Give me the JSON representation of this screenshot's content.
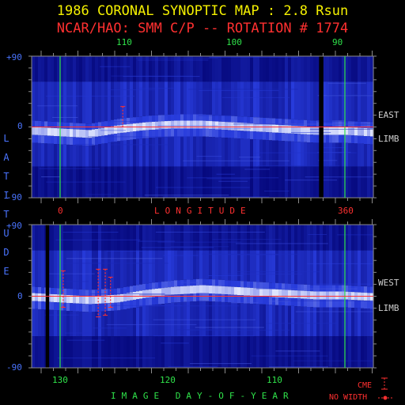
{
  "header": {
    "title": "1986 CORONAL SYNOPTIC MAP : 2.8 Rsun",
    "subtitle": "NCAR/HAO: SMM C/P -- ROTATION # 1774"
  },
  "colors": {
    "background": "#000000",
    "title": "#f4f000",
    "subtitle": "#ff3030",
    "latitude_axis": "#4a74ff",
    "green_markers": "#2fe34a",
    "equator_line": "#ff3030",
    "map_low": "#00007a",
    "map_high": "#e8ecff"
  },
  "top_axis": {
    "ticks": [
      "110",
      "100",
      "90"
    ]
  },
  "middle_axis": {
    "left": "0",
    "label": "LONGITUDE",
    "right": "360"
  },
  "bottom_axis": {
    "ticks": [
      "130",
      "120",
      "110"
    ],
    "label": "IMAGE DAY-OF-YEAR"
  },
  "y_axis": {
    "label": "LATITUDE",
    "top": "+90",
    "mid": "0",
    "bottom": "-90"
  },
  "side_labels": {
    "top_panel": [
      "EAST",
      "LIMB"
    ],
    "bottom_panel": [
      "WEST",
      "LIMB"
    ]
  },
  "legend": {
    "cme": "CME",
    "no_width": "NO WIDTH"
  },
  "chart_data": [
    {
      "type": "heatmap",
      "panel": "EAST LIMB",
      "x_axis": "longitude (deg)",
      "xlim": [
        0,
        360
      ],
      "ylim": [
        -90,
        90
      ],
      "ylabel": "LATITUDE",
      "top_ticks_day_of_year": [
        110,
        100,
        90
      ],
      "streamer_belt_latitude": [
        -6,
        -8,
        -10,
        -4,
        0,
        2,
        2,
        0,
        -2,
        -4,
        -6,
        -6,
        -8
      ],
      "data_gaps_longitude": [
        [
          318,
          323
        ]
      ],
      "cme_events": [
        {
          "longitude": 94,
          "lat_range": [
            0,
            26
          ]
        }
      ]
    },
    {
      "type": "heatmap",
      "panel": "WEST LIMB",
      "x_axis": "longitude (deg)",
      "xlim": [
        0,
        360
      ],
      "ylim": [
        -90,
        90
      ],
      "ylabel": "LATITUDE",
      "bottom_ticks_day_of_year": [
        130,
        120,
        110
      ],
      "streamer_belt_latitude": [
        -2,
        -4,
        -6,
        -4,
        2,
        6,
        8,
        6,
        4,
        2,
        0,
        0,
        -2
      ],
      "data_gaps_longitude": [
        [
          6,
          10
        ]
      ],
      "cme_events": [
        {
          "longitude": 26,
          "lat_range": [
            -14,
            32
          ]
        },
        {
          "longitude": 66,
          "lat_range": [
            -26,
            34
          ]
        },
        {
          "longitude": 74,
          "lat_range": [
            -24,
            34
          ]
        },
        {
          "longitude": 80,
          "lat_range": [
            -14,
            24
          ]
        }
      ]
    }
  ]
}
